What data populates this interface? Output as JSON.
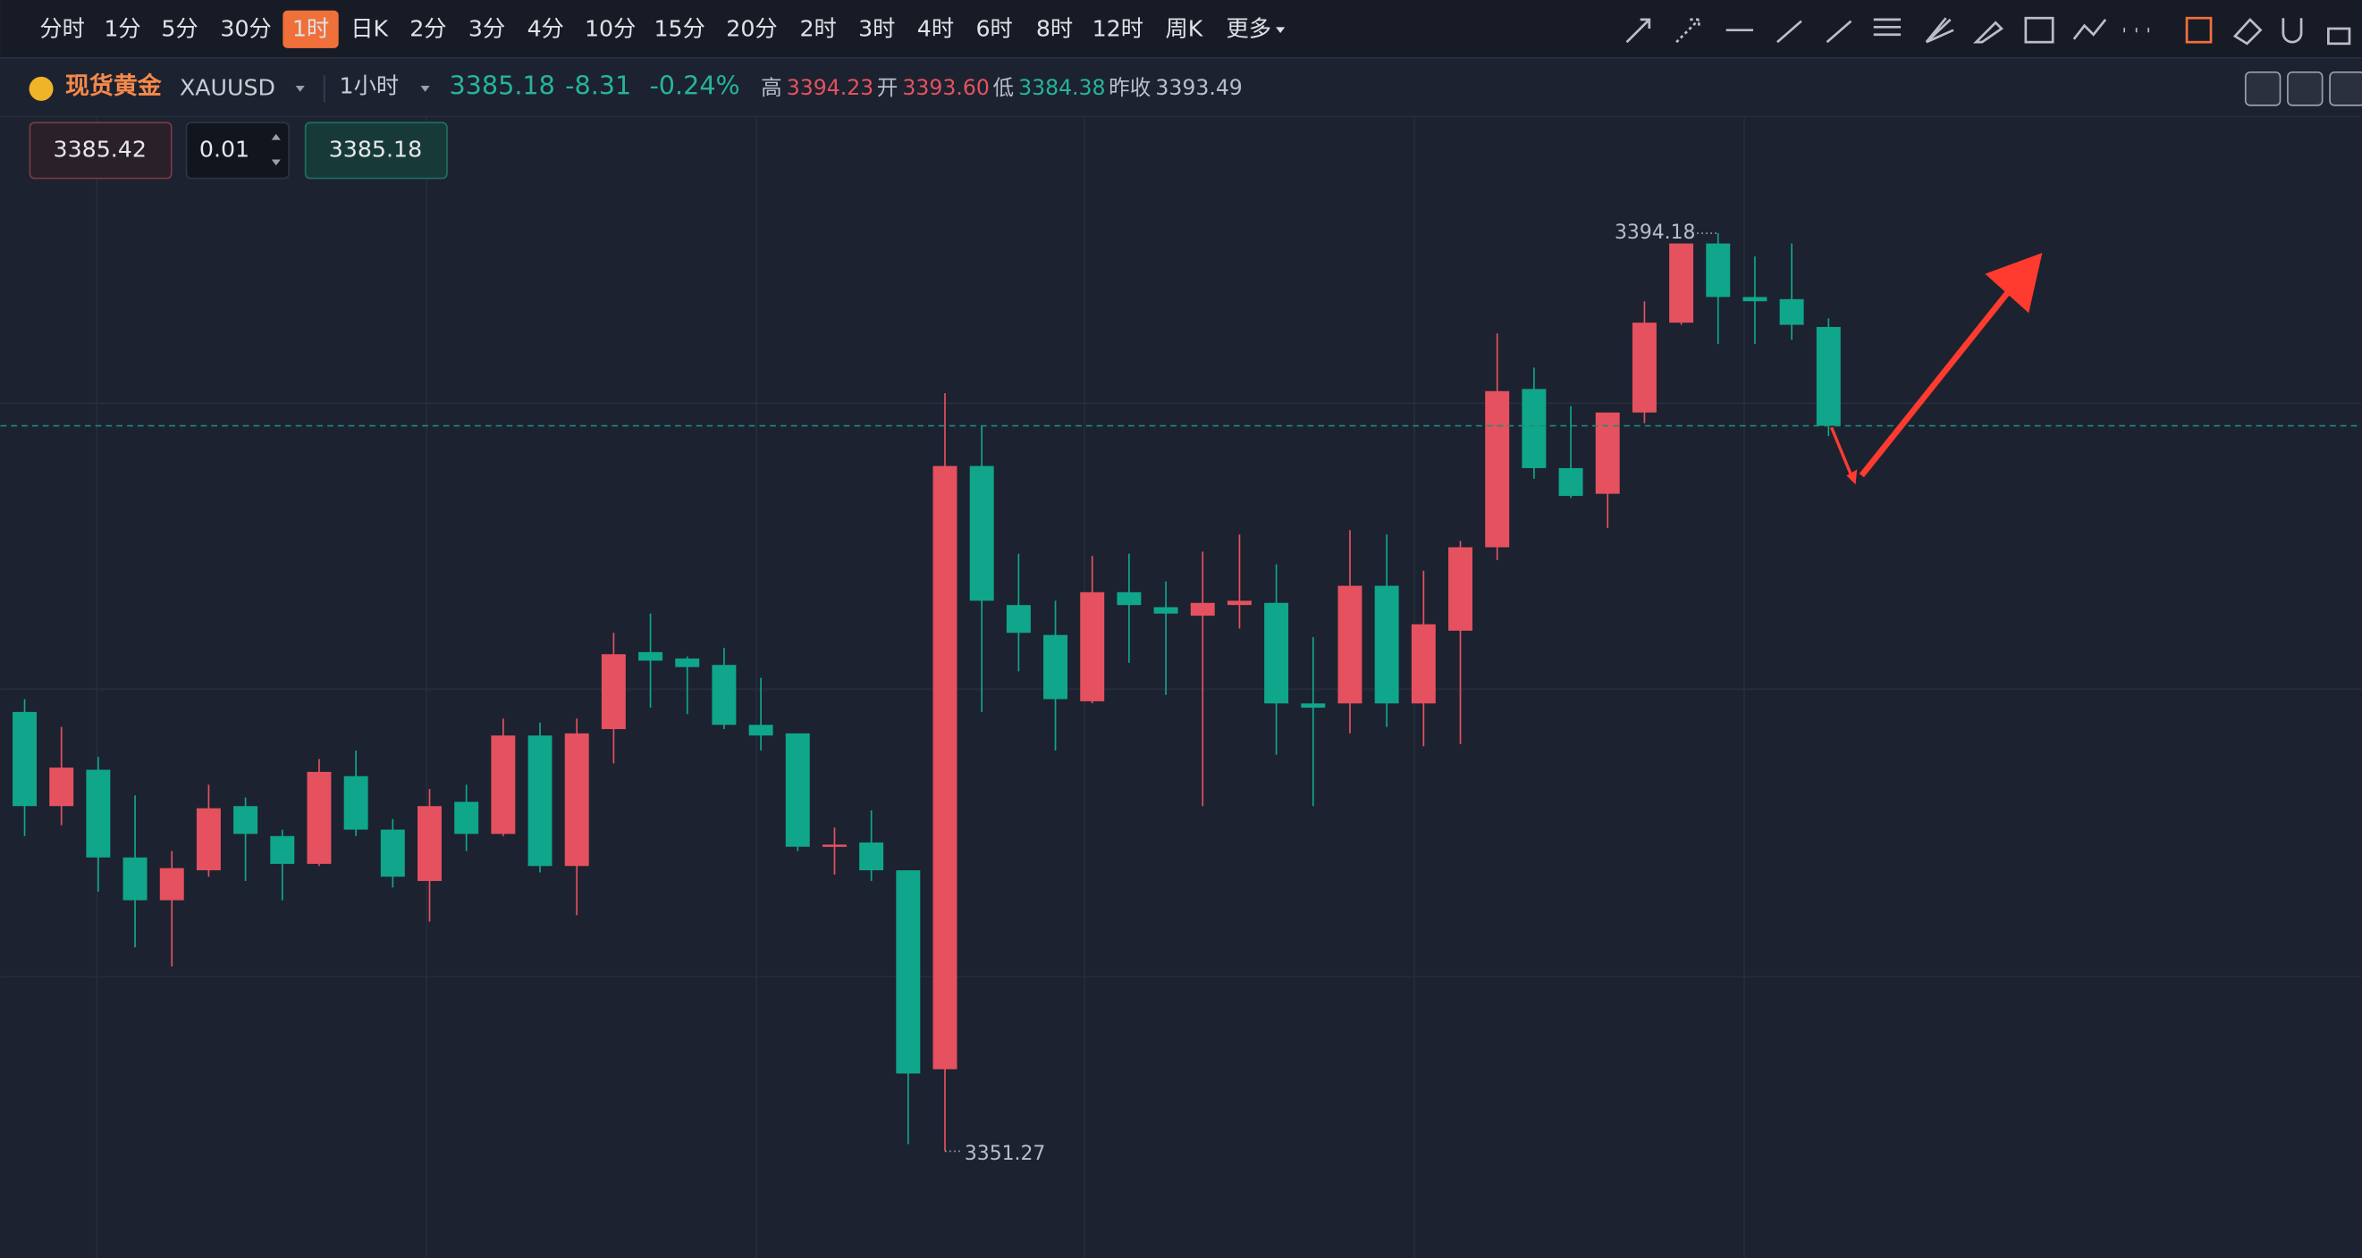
{
  "toolbar": {
    "intervals": [
      "分时",
      "1分",
      "5分",
      "30分",
      "1时",
      "日K",
      "2分",
      "3分",
      "4分",
      "10分",
      "15分",
      "20分",
      "2时",
      "3时",
      "4时",
      "6时",
      "8时",
      "12时",
      "周K",
      "更多"
    ],
    "active_interval": 4
  },
  "info": {
    "name": "现货黄金",
    "symbol": "XAUUSD",
    "period": "1小时",
    "price": "3385.18",
    "change": "-8.31",
    "change_pct": "-0.24%",
    "high_label": "高",
    "high": "3394.23",
    "open_label": "开",
    "open": "3393.60",
    "low_label": "低",
    "low": "3384.38",
    "prev_label": "昨收",
    "prev": "3393.49"
  },
  "order": {
    "sell": "3385.42",
    "lots": "0.01",
    "buy": "3385.18"
  },
  "chart_data": {
    "type": "candlestick",
    "up_color": "#e5515f",
    "down_color": "#10a68b",
    "open": [
      3371.8,
      3367.4,
      3369.1,
      3365.0,
      3363.0,
      3364.4,
      3367.4,
      3366.0,
      3364.7,
      3368.8,
      3366.3,
      3363.9,
      3367.6,
      3366.1,
      3370.7,
      3364.6,
      3371.0,
      3374.6,
      3374.3,
      3374.0,
      3371.2,
      3370.8,
      3365.5,
      3365.7,
      3364.4,
      3355.1,
      3383.3,
      3376.8,
      3375.4,
      3372.3,
      3377.4,
      3376.7,
      3376.3,
      3376.8,
      3376.9,
      3372.2,
      3372.2,
      3377.7,
      3372.2,
      3375.6,
      3379.5,
      3386.9,
      3383.2,
      3382.0,
      3385.8,
      3390.0,
      3393.7,
      3391.2,
      3391.1,
      3389.8
    ],
    "high": [
      3372.4,
      3371.1,
      3369.7,
      3367.9,
      3365.3,
      3368.4,
      3367.8,
      3366.3,
      3369.6,
      3370.0,
      3366.8,
      3368.2,
      3368.4,
      3371.5,
      3371.3,
      3371.5,
      3375.5,
      3376.4,
      3374.4,
      3374.8,
      3373.4,
      3370.8,
      3366.4,
      3367.2,
      3364.4,
      3386.7,
      3385.2,
      3379.2,
      3377.0,
      3379.1,
      3379.2,
      3377.9,
      3379.3,
      3380.1,
      3378.7,
      3375.3,
      3380.3,
      3380.1,
      3378.4,
      3379.8,
      3389.5,
      3387.9,
      3386.1,
      3385.8,
      3391.0,
      3393.7,
      3394.18,
      3393.1,
      3393.7,
      3390.2
    ],
    "low": [
      3366.0,
      3366.5,
      3363.4,
      3360.8,
      3359.9,
      3364.1,
      3363.9,
      3363.0,
      3364.6,
      3366.0,
      3363.6,
      3362.0,
      3365.3,
      3366.0,
      3364.3,
      3362.3,
      3369.4,
      3372.0,
      3371.7,
      3371.0,
      3370.0,
      3365.3,
      3364.2,
      3363.9,
      3351.6,
      3351.27,
      3371.8,
      3373.7,
      3370.0,
      3372.2,
      3374.1,
      3372.6,
      3367.4,
      3375.7,
      3369.8,
      3367.4,
      3370.8,
      3371.1,
      3370.2,
      3370.3,
      3378.9,
      3382.7,
      3381.8,
      3380.4,
      3385.3,
      3389.9,
      3389.0,
      3389.0,
      3389.2,
      3384.7
    ],
    "close": [
      3367.4,
      3369.2,
      3365.0,
      3363.0,
      3364.5,
      3367.3,
      3366.1,
      3364.7,
      3369.0,
      3366.3,
      3364.1,
      3367.4,
      3366.1,
      3370.7,
      3364.6,
      3370.8,
      3374.5,
      3374.2,
      3373.9,
      3371.2,
      3370.7,
      3365.5,
      3365.6,
      3364.4,
      3354.9,
      3383.3,
      3377.0,
      3375.5,
      3372.4,
      3377.4,
      3376.8,
      3376.4,
      3376.9,
      3377.0,
      3372.2,
      3372.0,
      3377.7,
      3372.2,
      3375.9,
      3379.5,
      3386.8,
      3383.2,
      3381.9,
      3385.8,
      3390.0,
      3393.7,
      3391.2,
      3391.0,
      3389.9,
      3385.18
    ]
  }
}
